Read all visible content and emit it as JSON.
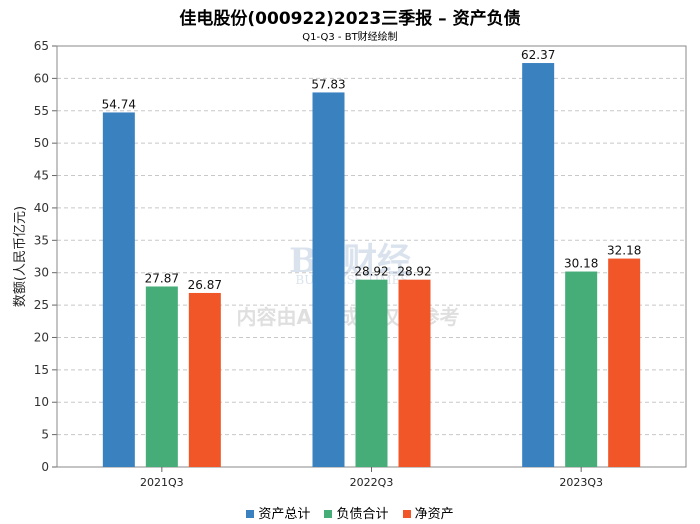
{
  "chart_data": {
    "type": "bar",
    "title": "佳电股份(000922)2023三季报 – 资产负债",
    "subtitle": "Q1-Q3 - BT财经绘制",
    "ylabel": "数额(人民币亿元)",
    "xlabel": "",
    "ylim": [
      0,
      65
    ],
    "ytick_step": 5,
    "grid": true,
    "categories": [
      "2021Q3",
      "2022Q3",
      "2023Q3"
    ],
    "series": [
      {
        "name": "资产总计",
        "color": "#3a81c0",
        "values": [
          54.74,
          57.83,
          62.37
        ],
        "labels": [
          "54.74",
          "57.83",
          "62.37"
        ]
      },
      {
        "name": "负债合计",
        "color": "#46ad79",
        "values": [
          27.87,
          28.92,
          30.18
        ],
        "labels": [
          "27.87",
          "28.92",
          "30.18"
        ]
      },
      {
        "name": "净资产",
        "color": "#f05628",
        "values": [
          26.87,
          28.92,
          32.18
        ],
        "labels": [
          "26.87",
          "28.92",
          "32.18"
        ]
      }
    ],
    "legend_position": "bottom-center",
    "watermark_logo": "BT财经 BUSINESS TIMES",
    "watermark_text": "内容由AI生成，仅供参考"
  }
}
